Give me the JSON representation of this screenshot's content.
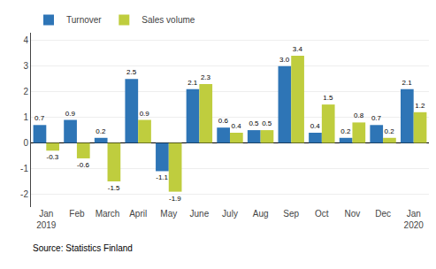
{
  "chart_data": {
    "type": "bar",
    "categories": [
      "Jan\n2019",
      "Feb",
      "March",
      "April",
      "May",
      "June",
      "July",
      "Aug",
      "Sep",
      "Oct",
      "Nov",
      "Dec",
      "Jan\n2020"
    ],
    "series": [
      {
        "name": "Turnover",
        "color": "#2E75B6",
        "values": [
          0.7,
          0.9,
          0.2,
          2.5,
          -1.1,
          2.1,
          0.6,
          0.5,
          3.0,
          0.4,
          0.2,
          0.7,
          2.1
        ],
        "value_labels": [
          "0.7",
          "0.9",
          "0.2",
          "2.5",
          "-1.1",
          "2.1",
          "0.6",
          "0.5",
          "3.0",
          "0.4",
          "0.2",
          "0.7",
          "2.1"
        ]
      },
      {
        "name": "Sales volume",
        "color": "#BFCD3E",
        "values": [
          -0.3,
          -0.6,
          -1.5,
          0.9,
          -1.9,
          2.3,
          0.4,
          0.5,
          3.4,
          1.5,
          0.8,
          0.2,
          1.2
        ],
        "value_labels": [
          "-0.3",
          "-0.6",
          "-1.5",
          "0.9",
          "-1.9",
          "2.3",
          "0.4",
          "0.5",
          "3.4",
          "1.5",
          "0.8",
          "0.2",
          "1.2"
        ]
      }
    ],
    "ylim": [
      -2.5,
      4.3
    ],
    "yticks": [
      -2,
      -1,
      0,
      1,
      2,
      3,
      4
    ],
    "grid": true,
    "legend": "upper left",
    "data_labels": true,
    "annotations": [
      "Source: Statistics Finland"
    ]
  }
}
